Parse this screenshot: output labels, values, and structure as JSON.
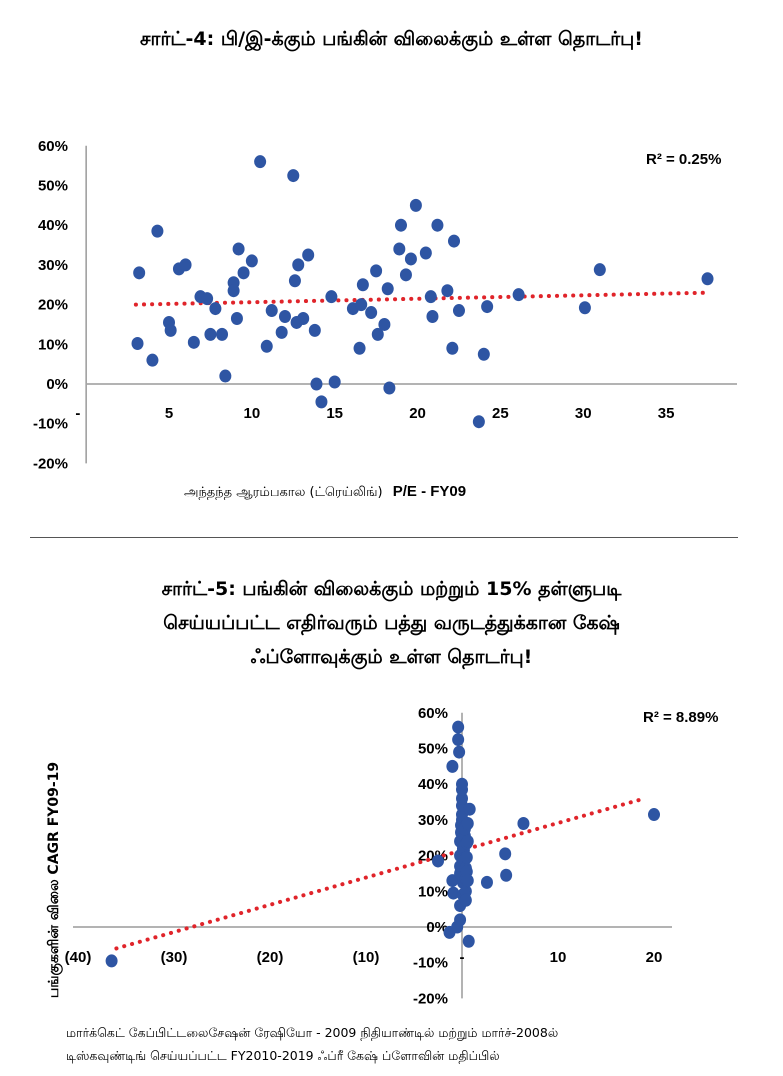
{
  "chart_data": [
    {
      "type": "scatter",
      "title": "சார்ட்-4: பி/இ-க்கும் பங்கின் விலைக்கும் உள்ள தொடர்பு!",
      "xlabel_prefix": "அந்தந்த ஆரம்பகால (ட்ரெய்லிங்)",
      "xlabel_suffix": "P/E - FY09",
      "ylabel": "",
      "r_squared_label": "R² = 0.25%",
      "xlim": [
        0,
        38
      ],
      "ylim": [
        -20,
        60
      ],
      "x_ticks": [
        "-",
        "5",
        "10",
        "15",
        "20",
        "25",
        "30",
        "35"
      ],
      "x_tick_values": [
        -0.5,
        5,
        10,
        15,
        20,
        25,
        30,
        35
      ],
      "y_ticks": [
        "60%",
        "50%",
        "40%",
        "30%",
        "20%",
        "10%",
        "0%",
        "-10%",
        "-20%"
      ],
      "y_tick_values": [
        60,
        50,
        40,
        30,
        20,
        10,
        0,
        -10,
        -20
      ],
      "trendline": {
        "x": [
          3,
          37.5
        ],
        "y": [
          20,
          23
        ]
      },
      "series": [
        {
          "color": "#2e55a3",
          "points": [
            [
              3.1,
              10.2
            ],
            [
              3.2,
              28
            ],
            [
              4.0,
              6
            ],
            [
              4.3,
              38.5
            ],
            [
              5.0,
              15.5
            ],
            [
              5.1,
              13.5
            ],
            [
              5.6,
              29
            ],
            [
              6.0,
              30
            ],
            [
              6.5,
              10.5
            ],
            [
              6.9,
              22
            ],
            [
              7.3,
              21.5
            ],
            [
              7.5,
              12.5
            ],
            [
              7.8,
              19
            ],
            [
              8.2,
              12.5
            ],
            [
              8.4,
              2
            ],
            [
              8.9,
              25.5
            ],
            [
              8.9,
              23.5
            ],
            [
              9.1,
              16.5
            ],
            [
              9.2,
              34
            ],
            [
              9.5,
              28
            ],
            [
              10.0,
              31
            ],
            [
              10.5,
              56
            ],
            [
              10.9,
              9.5
            ],
            [
              11.2,
              18.5
            ],
            [
              11.8,
              13
            ],
            [
              12.0,
              17
            ],
            [
              12.5,
              52.5
            ],
            [
              12.6,
              26
            ],
            [
              12.7,
              15.5
            ],
            [
              12.8,
              30
            ],
            [
              13.1,
              16.5
            ],
            [
              13.4,
              32.5
            ],
            [
              13.8,
              13.5
            ],
            [
              13.9,
              0
            ],
            [
              14.2,
              -4.5
            ],
            [
              14.8,
              22
            ],
            [
              15.0,
              0.5
            ],
            [
              16.1,
              19
            ],
            [
              16.5,
              9
            ],
            [
              16.6,
              20
            ],
            [
              16.7,
              25
            ],
            [
              17.2,
              18
            ],
            [
              17.5,
              28.5
            ],
            [
              17.6,
              12.5
            ],
            [
              18.0,
              15
            ],
            [
              18.2,
              24
            ],
            [
              18.3,
              -1
            ],
            [
              18.9,
              34
            ],
            [
              19.0,
              40
            ],
            [
              19.3,
              27.5
            ],
            [
              19.6,
              31.5
            ],
            [
              19.9,
              45
            ],
            [
              20.5,
              33
            ],
            [
              20.8,
              22
            ],
            [
              20.9,
              17
            ],
            [
              21.2,
              40
            ],
            [
              21.8,
              23.5
            ],
            [
              22.1,
              9
            ],
            [
              22.2,
              36
            ],
            [
              22.5,
              18.5
            ],
            [
              23.7,
              -9.5
            ],
            [
              24.0,
              7.5
            ],
            [
              24.2,
              19.5
            ],
            [
              26.1,
              22.5
            ],
            [
              30.1,
              19.2
            ],
            [
              31.0,
              28.8
            ],
            [
              37.5,
              26.5
            ]
          ]
        }
      ]
    },
    {
      "type": "scatter",
      "title_lines": [
        "சார்ட்-5: பங்கின் விலைக்கும் மற்றும் 15% தள்ளுபடி",
        "செய்யப்பட்ட எதிர்வரும் பத்து வருடத்துக்கான கேஷ்",
        "ஃப்ளோவுக்கும் உள்ள தொடர்பு!"
      ],
      "ylabel": "பங்குகளின் விலை CAGR FY09-19",
      "xlabel_lines": [
        "மார்க்கெட் கேப்பிட்டலைசேஷன் ரேஷியோ - 2009 நிதியாண்டில் மற்றும் மார்ச்-2008ல்",
        "டிஸ்கவுண்டிங் செய்யப்பட்ட FY2010-2019 ஃப்ரீ கேஷ் ப்ளோவின் மதிப்பில்"
      ],
      "r_squared_label": "R² = 8.89%",
      "xlim": [
        -42,
        23
      ],
      "ylim": [
        -20,
        60
      ],
      "x_ticks": [
        "(40)",
        "(30)",
        "(20)",
        "(10)",
        "-",
        "10",
        "20"
      ],
      "x_tick_values": [
        -40,
        -30,
        -20,
        -10,
        0,
        10,
        20
      ],
      "y_ticks": [
        "60%",
        "50%",
        "40%",
        "30%",
        "20%",
        "10%",
        "0%",
        "-10%",
        "-20%"
      ],
      "y_tick_values": [
        60,
        50,
        40,
        30,
        20,
        10,
        0,
        -10,
        -20
      ],
      "trendline": {
        "x": [
          -36,
          19
        ],
        "y": [
          -6,
          36
        ]
      },
      "series": [
        {
          "color": "#2e55a3",
          "points": [
            [
              -36.5,
              -9.5
            ],
            [
              -2.5,
              18.5
            ],
            [
              -1.3,
              -1.5
            ],
            [
              -1.0,
              45
            ],
            [
              -1.0,
              13
            ],
            [
              -0.9,
              9.5
            ],
            [
              -0.5,
              0
            ],
            [
              -0.4,
              56
            ],
            [
              -0.4,
              52.5
            ],
            [
              -0.3,
              49
            ],
            [
              -0.2,
              2
            ],
            [
              -0.2,
              6
            ],
            [
              -0.2,
              15
            ],
            [
              -0.2,
              17
            ],
            [
              -0.2,
              20
            ],
            [
              -0.2,
              24
            ],
            [
              -0.1,
              26.5
            ],
            [
              -0.1,
              28.5
            ],
            [
              0,
              30
            ],
            [
              0,
              31.5
            ],
            [
              0,
              34
            ],
            [
              0,
              36
            ],
            [
              0,
              38.5
            ],
            [
              0,
              40
            ],
            [
              0.1,
              12.5
            ],
            [
              0.1,
              9
            ],
            [
              0.1,
              22
            ],
            [
              0.2,
              21.5
            ],
            [
              0.2,
              19
            ],
            [
              0.2,
              18.5
            ],
            [
              0.2,
              22.5
            ],
            [
              0.3,
              28
            ],
            [
              0.3,
              25.5
            ],
            [
              0.3,
              27.5
            ],
            [
              0.4,
              16.5
            ],
            [
              0.4,
              13.5
            ],
            [
              0.4,
              10
            ],
            [
              0.4,
              7.5
            ],
            [
              0.5,
              15.5
            ],
            [
              0.5,
              19.5
            ],
            [
              0.5,
              23.5
            ],
            [
              0.6,
              13
            ],
            [
              0.6,
              24
            ],
            [
              0.6,
              29
            ],
            [
              0.7,
              -4
            ],
            [
              0.8,
              33
            ],
            [
              2.6,
              12.5
            ],
            [
              4.5,
              20.5
            ],
            [
              4.6,
              14.5
            ],
            [
              6.4,
              29
            ],
            [
              20.0,
              31.5
            ]
          ]
        }
      ]
    }
  ]
}
